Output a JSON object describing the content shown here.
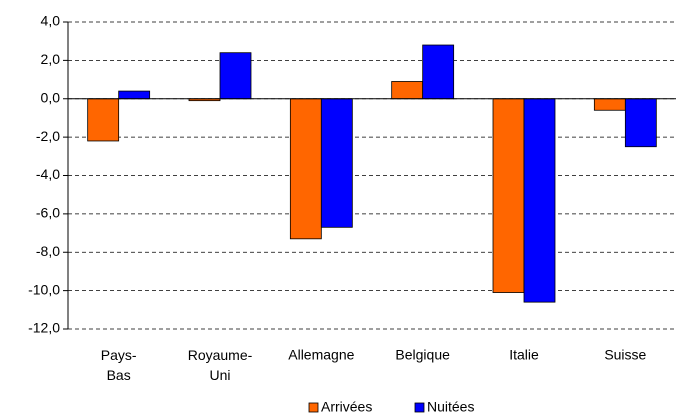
{
  "chart_data": {
    "type": "bar",
    "categories": [
      "Pays-Bas",
      "Royaume-Uni",
      "Allemagne",
      "Belgique",
      "Italie",
      "Suisse"
    ],
    "series": [
      {
        "name": "Arrivées",
        "color": "#ff6600",
        "values": [
          -2.2,
          -0.1,
          -7.3,
          0.9,
          -10.1,
          -0.6
        ]
      },
      {
        "name": "Nuitées",
        "color": "#0000ff",
        "values": [
          0.4,
          2.4,
          -6.7,
          2.8,
          -10.6,
          -2.5
        ]
      }
    ],
    "ylim": [
      -12,
      4
    ],
    "yticks": [
      {
        "value": -12,
        "label": "-12,0"
      },
      {
        "value": -10,
        "label": "-10,0"
      },
      {
        "value": -8,
        "label": "-8,0"
      },
      {
        "value": -6,
        "label": "-6,0"
      },
      {
        "value": -4,
        "label": "-4,0"
      },
      {
        "value": -2,
        "label": "-2,0"
      },
      {
        "value": 0,
        "label": "0,0"
      },
      {
        "value": 2,
        "label": "2,0"
      },
      {
        "value": 4,
        "label": "4,0"
      }
    ],
    "grid": true,
    "legend": "bottom"
  }
}
